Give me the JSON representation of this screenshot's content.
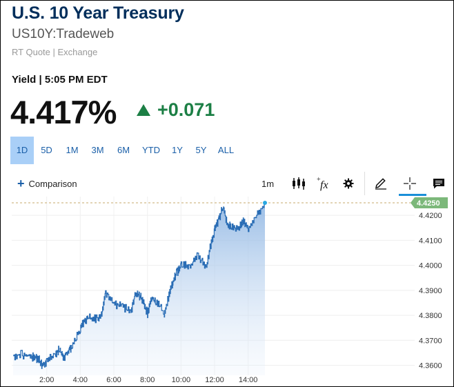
{
  "header": {
    "title": "U.S. 10 Year Treasury",
    "symbol": "US10Y:Tradeweb",
    "quote_meta": "RT Quote | Exchange",
    "yield_label": "Yield | 5:05 PM EDT",
    "last": "4.417%",
    "change": "+0.071"
  },
  "ranges": [
    "1D",
    "5D",
    "1M",
    "3M",
    "6M",
    "YTD",
    "1Y",
    "5Y",
    "ALL"
  ],
  "active_range": "1D",
  "toolbar": {
    "comparison_label": "Comparison",
    "interval_label": "1m",
    "icons": [
      "candlestick-icon",
      "fx-icon",
      "gear-icon",
      "pencil-icon",
      "crosshair-icon",
      "chat-icon"
    ]
  },
  "colors": {
    "title": "#002e5b",
    "positive": "#1c7f45",
    "accent": "#1a5fa8",
    "line": "#2a6db5",
    "price_tag": "#7cb87a"
  },
  "chart_data": {
    "type": "area",
    "current_price_label": "4.4250",
    "x_tick_labels": [
      "2:00",
      "4:00",
      "6:00",
      "8:00",
      "10:00",
      "12:00",
      "14:00"
    ],
    "y_tick_labels": [
      "4.4200",
      "4.4100",
      "4.4000",
      "4.3900",
      "4.3800",
      "4.3700",
      "4.3600"
    ],
    "ylim": [
      4.356,
      4.4275
    ],
    "x": [
      0.0,
      0.5,
      1.0,
      1.25,
      1.5,
      1.75,
      2.0,
      2.5,
      2.75,
      3.0,
      3.25,
      3.5,
      4.0,
      4.25,
      4.5,
      5.0,
      5.25,
      5.5,
      6.0,
      6.5,
      7.0,
      7.25,
      7.5,
      7.75,
      8.0,
      8.25,
      8.5,
      9.0,
      9.25,
      9.5,
      9.75,
      10.0,
      10.5,
      11.0,
      11.5,
      11.75,
      12.0,
      12.25,
      12.5,
      12.75,
      13.0,
      13.5,
      13.75,
      14.0,
      14.5,
      15.0
    ],
    "y": [
      4.3647,
      4.3652,
      4.3646,
      4.3641,
      4.3635,
      4.3608,
      4.3625,
      4.3651,
      4.3675,
      4.3637,
      4.3665,
      4.3681,
      4.3756,
      4.3789,
      4.38,
      4.3792,
      4.3806,
      4.39,
      4.385,
      4.385,
      4.3815,
      4.389,
      4.389,
      4.3865,
      4.3815,
      4.388,
      4.386,
      4.382,
      4.388,
      4.394,
      4.398,
      4.401,
      4.4005,
      4.405,
      4.4,
      4.4085,
      4.415,
      4.419,
      4.4245,
      4.4175,
      4.416,
      4.4165,
      4.4185,
      4.4158,
      4.4215,
      4.425
    ]
  }
}
